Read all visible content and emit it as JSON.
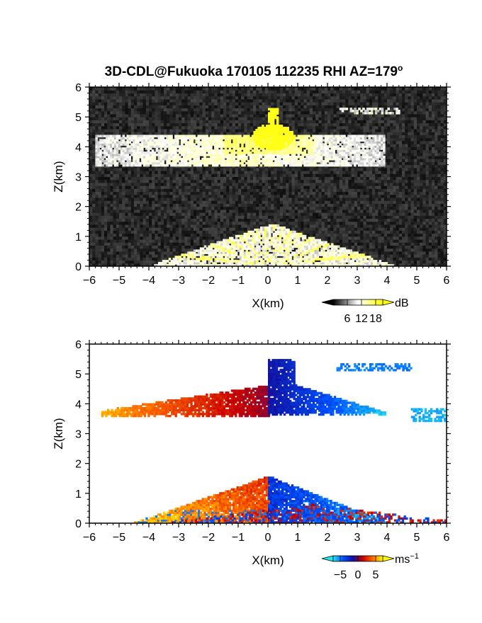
{
  "figure": {
    "title": "3D-CDL@Fukuoka 170105 112235 RHI AZ=179",
    "title_superscript": "o"
  },
  "chart_data": [
    {
      "type": "heatmap",
      "quantity": "backscatter intensity",
      "xlabel": "X(km)",
      "ylabel": "Z(km)",
      "xlim": [
        -6,
        6
      ],
      "ylim": [
        0,
        6
      ],
      "xticks": [
        "−6",
        "−5",
        "−4",
        "−3",
        "−2",
        "−1",
        "0",
        "1",
        "2",
        "3",
        "4",
        "5",
        "6"
      ],
      "yticks": [
        "0",
        "1",
        "2",
        "3",
        "4",
        "5",
        "6"
      ],
      "colorbar": {
        "unit": "dB",
        "ticks": [
          "6",
          "12",
          "18"
        ],
        "range": [
          0,
          21
        ],
        "colors": [
          "#000000",
          "#ffffff",
          "#ffff00"
        ]
      },
      "features": [
        {
          "kind": "layer",
          "x": [
            -5.8,
            3.9
          ],
          "z": [
            3.35,
            4.4
          ],
          "level_dB": 9
        },
        {
          "kind": "core",
          "x": [
            -0.7,
            0.9
          ],
          "z": [
            3.9,
            5.3
          ],
          "level_dB": 20
        },
        {
          "kind": "streak",
          "x": [
            2.4,
            4.4
          ],
          "z": [
            5.1,
            5.3
          ],
          "level_dB": 10
        },
        {
          "kind": "boundary_layer",
          "x": [
            -3.9,
            4.2
          ],
          "z": [
            0.0,
            1.4
          ],
          "level_dB": 11
        },
        {
          "kind": "ground_clutter_line",
          "x": [
            -3.5,
            -0.8
          ],
          "z": [
            0.5,
            0.0
          ],
          "level_dB": 20
        }
      ]
    },
    {
      "type": "heatmap",
      "quantity": "radial velocity",
      "xlabel": "X(km)",
      "ylabel": "Z(km)",
      "xlim": [
        -6,
        6
      ],
      "ylim": [
        0,
        6
      ],
      "xticks": [
        "−6",
        "−5",
        "−4",
        "−3",
        "−2",
        "−1",
        "0",
        "1",
        "2",
        "3",
        "4",
        "5",
        "6"
      ],
      "yticks": [
        "0",
        "1",
        "2",
        "3",
        "4",
        "5",
        "6"
      ],
      "colorbar": {
        "unit": "ms",
        "unit_exponent": "−1",
        "ticks": [
          "−5",
          "0",
          "5"
        ],
        "range": [
          -7,
          7
        ],
        "colors": [
          "#22e6f0",
          "#0050ff",
          "#1010a0",
          "#c80000",
          "#ff6a00",
          "#ffff00"
        ]
      },
      "features": [
        {
          "kind": "layer_left",
          "x": [
            -5.6,
            0.0
          ],
          "z": [
            3.5,
            4.6
          ],
          "velocity": 4
        },
        {
          "kind": "layer_right",
          "x": [
            0.0,
            3.9
          ],
          "z": [
            3.55,
            5.45
          ],
          "velocity": -4
        },
        {
          "kind": "streak",
          "x": [
            2.3,
            4.8
          ],
          "z": [
            5.1,
            5.3
          ],
          "velocity": -5
        },
        {
          "kind": "patch",
          "x": [
            4.8,
            6.0
          ],
          "z": [
            3.4,
            3.8
          ],
          "velocity": -6
        },
        {
          "kind": "boundary_layer_left",
          "x": [
            -4.5,
            0.0
          ],
          "z": [
            0.0,
            1.6
          ],
          "velocity": 4
        },
        {
          "kind": "boundary_layer_right",
          "x": [
            0.0,
            4.0
          ],
          "z": [
            0.0,
            1.6
          ],
          "velocity": -4
        },
        {
          "kind": "near_ground_mixed",
          "x": [
            -3.5,
            6.0
          ],
          "z": [
            0.0,
            0.6
          ],
          "velocity": 0
        }
      ]
    }
  ]
}
